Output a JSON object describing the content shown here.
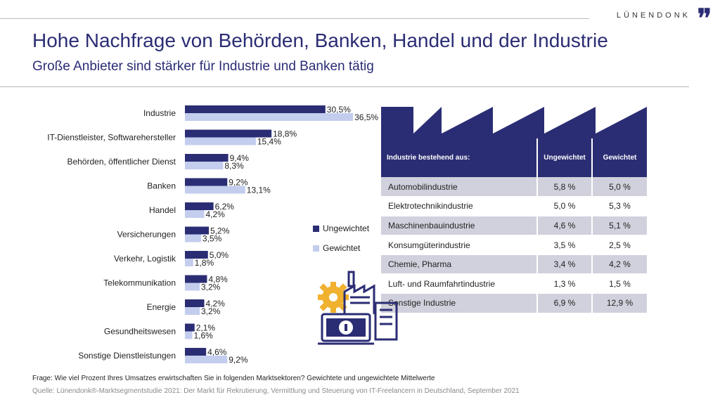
{
  "brand": {
    "name": "LÜNENDONK",
    "mark": "❜❜"
  },
  "header": {
    "title": "Hohe Nachfrage von Behörden, Banken, Handel und der Industrie",
    "subtitle": "Große Anbieter sind stärker für Industrie und Banken tätig"
  },
  "colors": {
    "ungewichtet": "#2b2d74",
    "gewichtet": "#c3cdee",
    "accent": "#f0b12f"
  },
  "chart_data": {
    "type": "bar",
    "orientation": "horizontal",
    "categories": [
      "Industrie",
      "IT-Dienstleister, Softwarehersteller",
      "Behörden, öffentlicher Dienst",
      "Banken",
      "Handel",
      "Versicherungen",
      "Verkehr, Logistik",
      "Telekommunikation",
      "Energie",
      "Gesundheitswesen",
      "Sonstige Dienstleistungen"
    ],
    "series": [
      {
        "name": "Ungewichtet",
        "values": [
          30.5,
          18.8,
          9.4,
          9.2,
          6.2,
          5.2,
          5.0,
          4.8,
          4.2,
          2.1,
          4.6
        ],
        "labels": [
          "30,5%",
          "18,8%",
          "9,4%",
          "9,2%",
          "6,2%",
          "5,2%",
          "5,0%",
          "4,8%",
          "4,2%",
          "2,1%",
          "4,6%"
        ]
      },
      {
        "name": "Gewichtet",
        "values": [
          36.5,
          15.4,
          8.3,
          13.1,
          4.2,
          3.5,
          1.8,
          3.2,
          3.2,
          1.6,
          9.2
        ],
        "labels": [
          "36,5%",
          "15,4%",
          "8,3%",
          "13,1%",
          "4,2%",
          "3,5%",
          "1,8%",
          "3,2%",
          "3,2%",
          "1,6%",
          "9,2%"
        ]
      }
    ],
    "legend_position": "right",
    "grid": false
  },
  "table": {
    "headers": [
      "Industrie bestehend aus:",
      "Ungewichtet",
      "Gewichtet"
    ],
    "rows": [
      {
        "name": "Automobilindustrie",
        "ungewichtet": "5,8 %",
        "gewichtet": "5,0 %"
      },
      {
        "name": "Elektrotechnikindustrie",
        "ungewichtet": "5,0 %",
        "gewichtet": "5,3 %"
      },
      {
        "name": "Maschinenbauindustrie",
        "ungewichtet": "4,6 %",
        "gewichtet": "5,1 %"
      },
      {
        "name": "Konsumgüterindustrie",
        "ungewichtet": "3,5 %",
        "gewichtet": "2,5 %"
      },
      {
        "name": "Chemie, Pharma",
        "ungewichtet": "3,4 %",
        "gewichtet": "4,2 %"
      },
      {
        "name": "Luft- und Raumfahrtindustrie",
        "ungewichtet": "1,3 %",
        "gewichtet": "1,5 %"
      },
      {
        "name": "Sonstige Industrie",
        "ungewichtet": "6,9 %",
        "gewichtet": "12,9 %"
      }
    ]
  },
  "footer": {
    "question": "Frage: Wie viel Prozent Ihres Umsatzes erwirtschaften Sie in folgenden Marktsektoren? Gewichtete und ungewichtete Mittelwerte",
    "source": "Quelle: Lünendonk®-Marktsegmentstudie 2021: Der Markt für Rekrutierung, Vermittlung und Steuerung von IT-Freelancern in Deutschland, September 2021"
  },
  "icons": {
    "factory": "factory-roof-icon",
    "illustration": "industry-money-icon"
  }
}
